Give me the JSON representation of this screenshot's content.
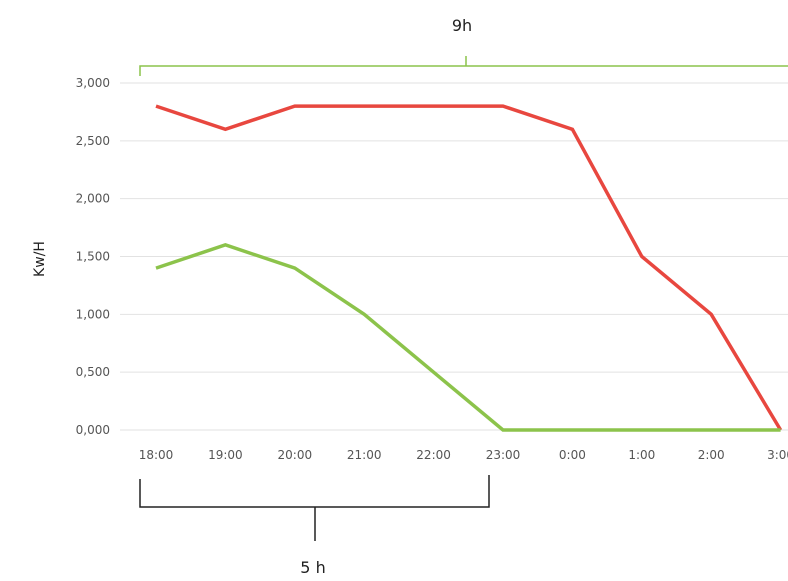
{
  "chart_data": {
    "type": "line",
    "title": "",
    "xlabel": "",
    "ylabel": "Kw/H",
    "categories": [
      "18:00",
      "19:00",
      "20:00",
      "21:00",
      "22:00",
      "23:00",
      "0:00",
      "1:00",
      "2:00",
      "3:00"
    ],
    "y_tick_labels": [
      "0,000",
      "0,500",
      "1,000",
      "1,500",
      "2,000",
      "2,500",
      "3,000"
    ],
    "y_ticks": [
      0,
      500,
      1000,
      1500,
      2000,
      2500,
      3000
    ],
    "ylim": [
      0,
      3000
    ],
    "grid": true,
    "legend": "none",
    "series": [
      {
        "values": [
          2800,
          2600,
          2800,
          2800,
          2800,
          2800,
          2600,
          1500,
          1000,
          0
        ],
        "color": "#e8473f"
      },
      {
        "values": [
          1400,
          1600,
          1400,
          1000,
          500,
          0,
          0,
          0,
          0,
          0
        ],
        "color": "#8cc34b"
      }
    ],
    "annotations": {
      "top_span_label": "9h",
      "top_span_color": "#8cc34b",
      "bottom_span_label": "5 h",
      "bottom_span_color": "#222222"
    }
  }
}
